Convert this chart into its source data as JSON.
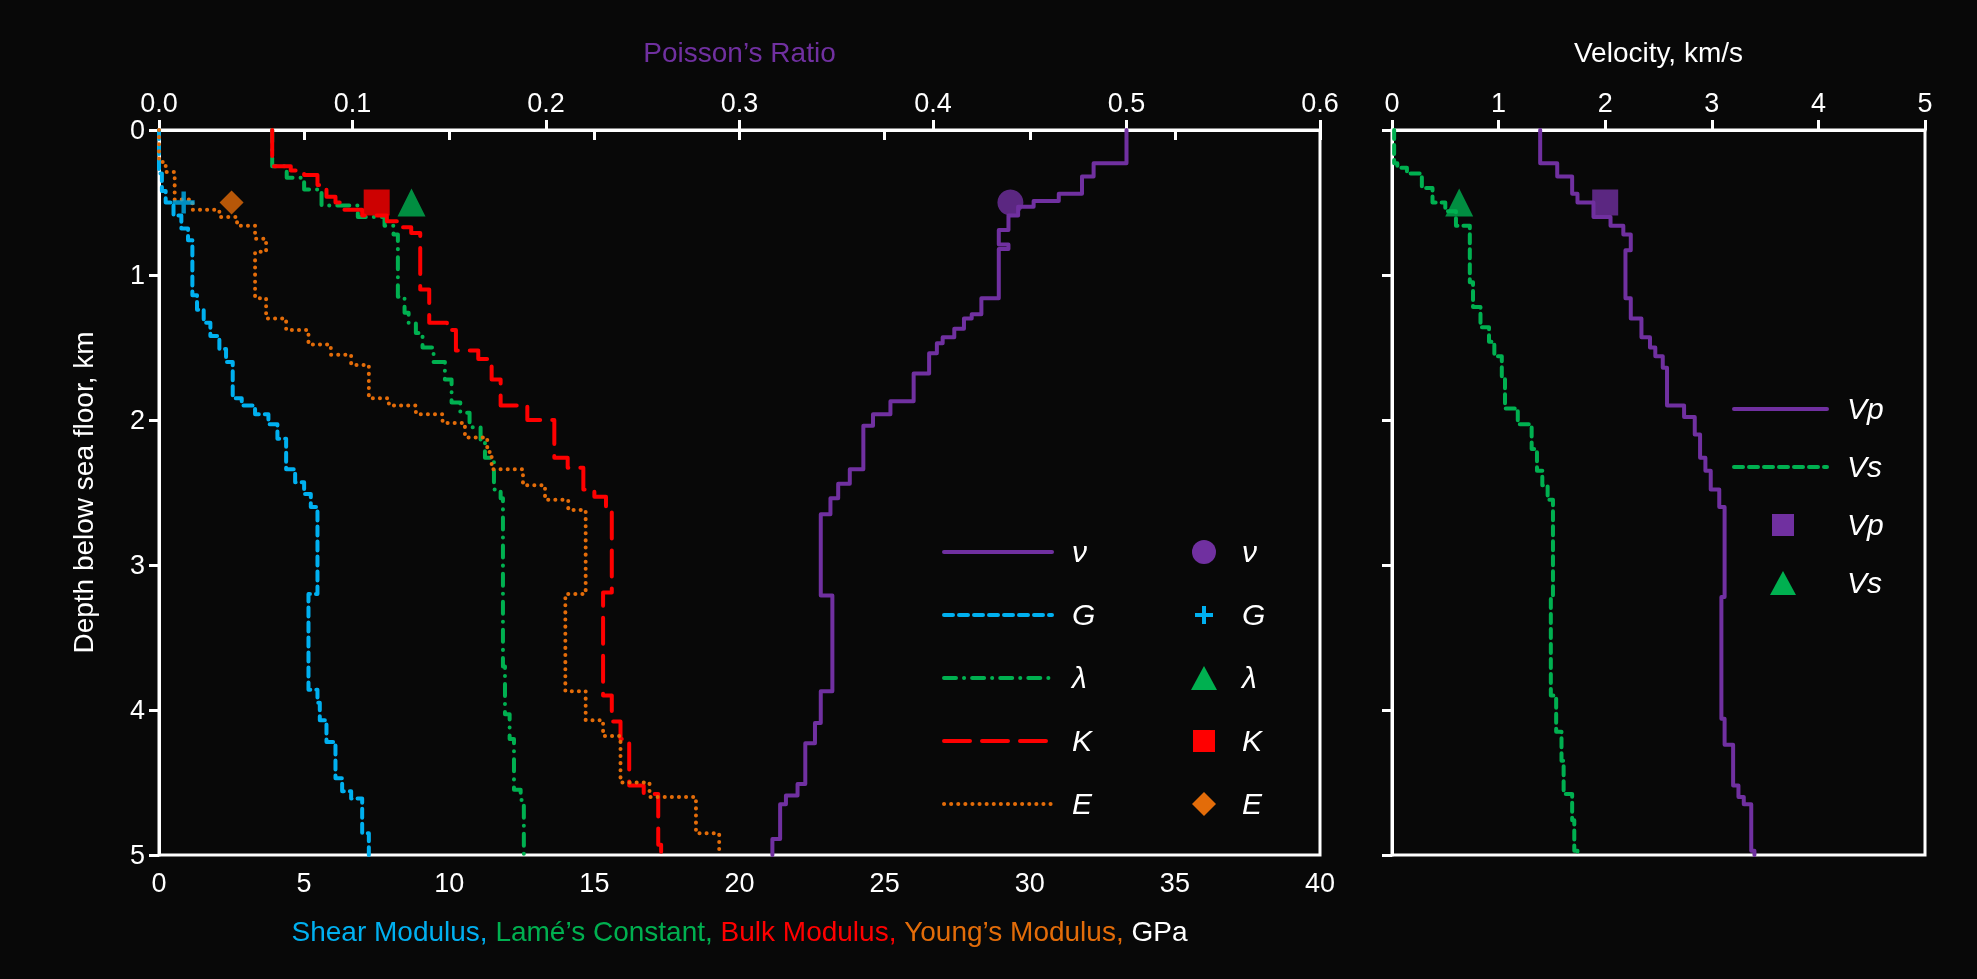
{
  "chart_data": [
    {
      "type": "step",
      "xlabel": "Shear Modulus, Lamé’s Constant, Bulk Modulus, Young’s Modulus, GPa",
      "x2label": "Poisson’s Ratio",
      "ylabel": "Depth below sea floor, km",
      "xlim": [
        0,
        40
      ],
      "xticks": [
        0,
        5,
        10,
        15,
        20,
        25,
        30,
        35,
        40
      ],
      "x2lim": [
        0,
        0.6
      ],
      "x2ticks": [
        {
          "value": 0,
          "label": "0.0"
        },
        0.1,
        0.2,
        0.3,
        0.4,
        0.5,
        0.6
      ],
      "ylim": [
        5,
        0
      ],
      "yticks": [
        0,
        1,
        2,
        3,
        4,
        5
      ],
      "legend": "bottom right",
      "series": [
        {
          "name": "ν",
          "color": "#7030a0",
          "axis": "x2",
          "line_style": "solid",
          "x": [
            0.5,
            0.483,
            0.477,
            0.465,
            0.452,
            0.444,
            0.439,
            0.434,
            0.439,
            0.434,
            0.425,
            0.42,
            0.416,
            0.411,
            0.405,
            0.402,
            0.398,
            0.39,
            0.378,
            0.369,
            0.364,
            0.357,
            0.351,
            0.347,
            0.342,
            0.348,
            0.342,
            0.339,
            0.334,
            0.33,
            0.324,
            0.321,
            0.317,
            0.317
          ],
          "values": [
            0,
            0.23,
            0.32,
            0.44,
            0.49,
            0.53,
            0.59,
            0.69,
            0.79,
            0.82,
            1.16,
            1.27,
            1.3,
            1.37,
            1.43,
            1.47,
            1.54,
            1.68,
            1.87,
            1.96,
            2.04,
            2.34,
            2.44,
            2.54,
            2.65,
            3.21,
            3.87,
            4.09,
            4.23,
            4.51,
            4.59,
            4.65,
            4.89,
            5
          ]
        },
        {
          "name": "G",
          "color": "#00b0f0",
          "line_style": "dashed",
          "x": [
            0,
            0.1,
            0.23,
            0.5,
            0.77,
            1.0,
            1.15,
            1.31,
            1.54,
            1.77,
            2.08,
            2.31,
            2.54,
            2.85,
            3.31,
            3.77,
            4.08,
            4.38,
            4.69,
            5.0,
            5.23,
            5.46,
            5.15,
            5.46,
            5.54,
            5.77,
            6.08,
            6.31,
            6.62,
            7.0,
            7.23,
            7.23
          ],
          "values": [
            0,
            0.3,
            0.42,
            0.5,
            0.59,
            0.68,
            0.76,
            1.14,
            1.24,
            1.33,
            1.42,
            1.51,
            1.6,
            1.85,
            1.9,
            1.96,
            2.03,
            2.13,
            2.34,
            2.43,
            2.51,
            2.6,
            3.2,
            3.86,
            3.95,
            4.07,
            4.22,
            4.47,
            4.56,
            4.61,
            4.85,
            5
          ]
        },
        {
          "name": "λ",
          "color": "#00b050",
          "line_style": "dashdot",
          "x": [
            3.9,
            4.4,
            5.0,
            5.6,
            6.85,
            7.77,
            8.08,
            8.23,
            8.46,
            8.6,
            8.85,
            9.08,
            9.46,
            9.85,
            10.08,
            10.38,
            10.7,
            11.08,
            11.23,
            11.54,
            11.77,
            11.85,
            11.92,
            12.08,
            12.23,
            12.46,
            12.57,
            12.57
          ],
          "values": [
            0,
            0.25,
            0.33,
            0.41,
            0.52,
            0.6,
            0.66,
            0.72,
            1.15,
            1.26,
            1.33,
            1.4,
            1.5,
            1.6,
            1.72,
            1.88,
            1.95,
            2.05,
            2.15,
            2.26,
            2.48,
            2.54,
            3.7,
            4.03,
            4.2,
            4.55,
            4.62,
            5
          ]
        },
        {
          "name": "K",
          "color": "#ff0000",
          "line_style": "longdash",
          "x": [
            3.9,
            4.54,
            5.0,
            5.46,
            5.77,
            6.08,
            6.38,
            7.0,
            7.85,
            8.38,
            8.69,
            9.0,
            9.31,
            9.92,
            10.23,
            11.0,
            11.46,
            11.77,
            12.69,
            13.62,
            14.08,
            14.62,
            15.0,
            15.4,
            15.6,
            15.3,
            15.6,
            15.9,
            16.2,
            16.7,
            17.2,
            17.3,
            17.3
          ],
          "values": [
            0,
            0.25,
            0.28,
            0.31,
            0.38,
            0.46,
            0.5,
            0.55,
            0.59,
            0.63,
            0.67,
            0.71,
            1.1,
            1.33,
            1.38,
            1.52,
            1.58,
            1.72,
            1.9,
            2.0,
            2.26,
            2.33,
            2.48,
            2.53,
            2.63,
            3.19,
            3.9,
            4.08,
            4.2,
            4.52,
            4.58,
            4.93,
            5
          ]
        },
        {
          "name": "E",
          "color": "#e36c09",
          "line_style": "dotted",
          "x": [
            0,
            0.23,
            0.54,
            1.15,
            2.08,
            2.69,
            3.31,
            3.69,
            3.31,
            3.69,
            4.38,
            5.15,
            5.92,
            6.62,
            7.23,
            7.92,
            8.85,
            9.77,
            10.54,
            11.31,
            11.46,
            12.54,
            13.3,
            14.1,
            14.7,
            14.0,
            14.7,
            15.3,
            15.9,
            16.9,
            18.5,
            19.3,
            19.3
          ],
          "values": [
            0,
            0.22,
            0.29,
            0.48,
            0.55,
            0.6,
            0.66,
            0.75,
            0.84,
            1.16,
            1.3,
            1.38,
            1.48,
            1.55,
            1.62,
            1.85,
            1.9,
            1.96,
            2.02,
            2.12,
            2.22,
            2.34,
            2.45,
            2.55,
            2.62,
            3.2,
            3.87,
            4.07,
            4.18,
            4.5,
            4.6,
            4.85,
            5
          ]
        },
        {
          "name": "ν",
          "type": "scatter",
          "marker": "circle",
          "color": "#7030a0",
          "axis": "x2",
          "x": [
            0.44
          ],
          "values": [
            0.5
          ]
        },
        {
          "name": "G",
          "type": "scatter",
          "marker": "cross",
          "color": "#00b0f0",
          "x": [
            0.85
          ],
          "values": [
            0.5
          ]
        },
        {
          "name": "λ",
          "type": "scatter",
          "marker": "triangle",
          "color": "#00b050",
          "x": [
            8.7
          ],
          "values": [
            0.5
          ]
        },
        {
          "name": "K",
          "type": "scatter",
          "marker": "square",
          "color": "#ff0000",
          "x": [
            7.5
          ],
          "values": [
            0.5
          ]
        },
        {
          "name": "E",
          "type": "scatter",
          "marker": "diamond",
          "color": "#e36c09",
          "x": [
            2.5
          ],
          "values": [
            0.5
          ]
        }
      ]
    },
    {
      "type": "step",
      "xlabel": "Velocity, km/s",
      "xlim": [
        0,
        5
      ],
      "xticks": [
        0,
        1,
        2,
        3,
        4,
        5
      ],
      "ylim": [
        5,
        0
      ],
      "yticks": [
        0,
        1,
        2,
        3,
        4,
        5
      ],
      "tick_labels": "x",
      "legend": "right",
      "series": [
        {
          "name": "Vp",
          "color": "#7030a0",
          "line_style": "solid",
          "x": [
            1.39,
            1.55,
            1.69,
            1.74,
            1.89,
            2.05,
            2.17,
            2.24,
            2.19,
            2.24,
            2.34,
            2.42,
            2.47,
            2.54,
            2.58,
            2.74,
            2.84,
            2.89,
            2.94,
            2.99,
            3.07,
            3.12,
            3.09,
            3.12,
            3.2,
            3.25,
            3.3,
            3.37,
            3.4,
            3.4
          ],
          "values": [
            0,
            0.23,
            0.32,
            0.44,
            0.5,
            0.6,
            0.66,
            0.72,
            0.83,
            1.16,
            1.3,
            1.43,
            1.5,
            1.56,
            1.64,
            1.9,
            1.98,
            2.1,
            2.26,
            2.35,
            2.48,
            2.6,
            3.22,
            4.06,
            4.24,
            4.52,
            4.6,
            4.65,
            4.97,
            5
          ]
        },
        {
          "name": "Vs",
          "color": "#00b050",
          "line_style": "dashed",
          "x": [
            0.02,
            0.05,
            0.14,
            0.28,
            0.38,
            0.5,
            0.6,
            0.73,
            0.76,
            0.83,
            0.91,
            0.96,
            1.03,
            1.06,
            1.18,
            1.31,
            1.36,
            1.41,
            1.46,
            1.51,
            1.49,
            1.54,
            1.59,
            1.61,
            1.69,
            1.71,
            1.74,
            1.74
          ],
          "values": [
            0,
            0.23,
            0.26,
            0.3,
            0.4,
            0.5,
            0.56,
            0.66,
            1.05,
            1.22,
            1.36,
            1.46,
            1.56,
            1.7,
            1.92,
            2.03,
            2.2,
            2.35,
            2.45,
            2.55,
            3.22,
            3.9,
            4.15,
            4.35,
            4.58,
            4.76,
            4.97,
            5
          ]
        },
        {
          "name": "Vp",
          "type": "scatter",
          "marker": "square",
          "color": "#7030a0",
          "x": [
            2.0
          ],
          "values": [
            0.5
          ]
        },
        {
          "name": "Vs",
          "type": "scatter",
          "marker": "triangle",
          "color": "#00b050",
          "x": [
            0.63
          ],
          "values": [
            0.5
          ]
        }
      ]
    }
  ]
}
